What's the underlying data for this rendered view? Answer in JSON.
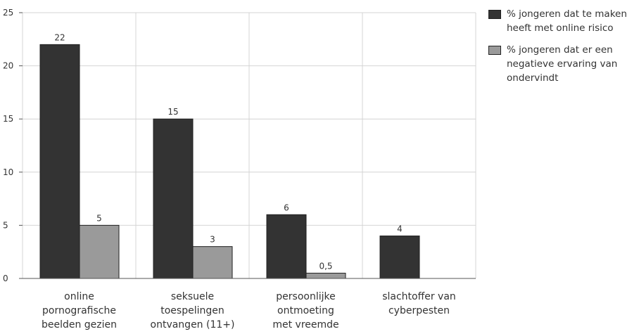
{
  "chart_data": {
    "type": "bar",
    "categories": [
      [
        "online",
        "pornografische",
        "beelden gezien"
      ],
      [
        "seksuele",
        "toespelingen",
        "ontvangen (11+)"
      ],
      [
        "persoonlijke",
        "ontmoeting",
        "met vreemde"
      ],
      [
        "slachtoffer van",
        "cyberpesten"
      ]
    ],
    "series": [
      {
        "name": "% jongeren dat te maken heeft met online risico",
        "values": [
          22,
          15,
          6,
          4
        ],
        "labels": [
          "22",
          "15",
          "6",
          "4"
        ],
        "color": "#333333"
      },
      {
        "name": "% jongeren dat er een negatieve ervaring van ondervindt",
        "values": [
          5,
          3,
          0.5,
          null
        ],
        "labels": [
          "5",
          "3",
          "0,5",
          ""
        ],
        "color": "#9a9a9a"
      }
    ],
    "y_ticks": [
      "0",
      "5",
      "10",
      "15",
      "20",
      "25"
    ],
    "ylim": [
      0,
      25
    ],
    "grid": true,
    "legend_position": "right"
  }
}
